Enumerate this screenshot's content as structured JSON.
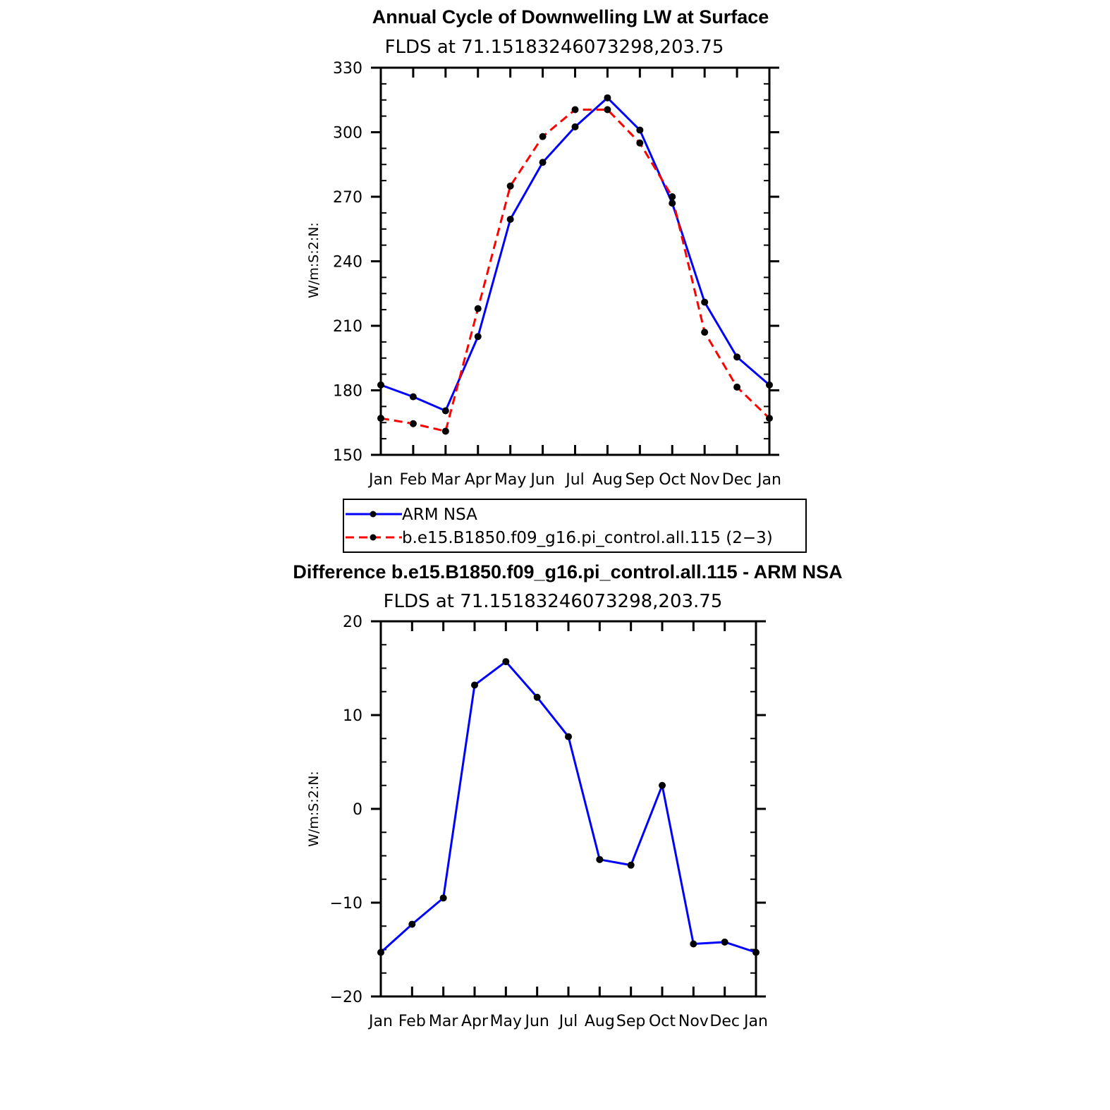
{
  "chart_data": [
    {
      "type": "line",
      "title": "Annual Cycle of Downwelling LW at Surface",
      "subtitle": "FLDS at 71.15183246073298,203.75",
      "xlabel": "",
      "ylabel": "W/m:S:2:N:",
      "categories": [
        "Jan",
        "Feb",
        "Mar",
        "Apr",
        "May",
        "Jun",
        "Jul",
        "Aug",
        "Sep",
        "Oct",
        "Nov",
        "Dec",
        "Jan"
      ],
      "yticks": [
        "150",
        "180",
        "210",
        "240",
        "270",
        "300",
        "330"
      ],
      "ylim": [
        150,
        330
      ],
      "series": [
        {
          "name": "ARM NSA",
          "color": "#0000ff",
          "dash": "solid",
          "values": [
            182.5,
            177,
            170.5,
            205,
            259.5,
            286,
            302.5,
            316,
            301,
            267,
            221,
            195.5,
            182.5
          ]
        },
        {
          "name": "b.e15.B1850.f09_g16.pi_control.all.115 (2−3)",
          "color": "#ff0000",
          "dash": "dashed",
          "values": [
            167,
            164.5,
            161,
            218,
            275,
            298,
            310.5,
            310.5,
            295,
            270,
            207,
            181.5,
            167
          ]
        }
      ],
      "legend": "below"
    },
    {
      "type": "line",
      "title": "Difference b.e15.B1850.f09_g16.pi_control.all.115 - ARM NSA",
      "subtitle": "FLDS at 71.15183246073298,203.75",
      "xlabel": "",
      "ylabel": "W/m:S:2:N:",
      "categories": [
        "Jan",
        "Feb",
        "Mar",
        "Apr",
        "May",
        "Jun",
        "Jul",
        "Aug",
        "Sep",
        "Oct",
        "Nov",
        "Dec",
        "Jan"
      ],
      "yticks": [
        "−20",
        "−10",
        "0",
        "10",
        "20"
      ],
      "ylim": [
        -20,
        20
      ],
      "series": [
        {
          "name": "Difference",
          "color": "#0000ff",
          "dash": "solid",
          "values": [
            -15.3,
            -12.3,
            -9.5,
            13.2,
            15.7,
            11.9,
            7.7,
            -5.4,
            -6.0,
            2.5,
            -14.4,
            -14.2,
            -15.3
          ]
        }
      ]
    }
  ]
}
